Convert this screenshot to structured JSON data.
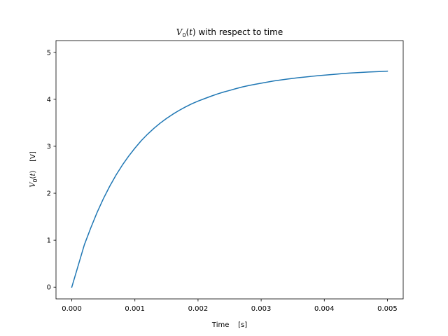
{
  "chart_data": {
    "type": "line",
    "title": {
      "symbol": "V",
      "subscript": "0",
      "arg_open": "(",
      "arg_var": "t",
      "arg_close": ")",
      "suffix": " with respect to time"
    },
    "xlabel": "Time    [s]",
    "ylabel": {
      "symbol": "V",
      "subscript": "0",
      "arg_open": "(",
      "arg_var": "t",
      "arg_close": ")",
      "unit": "    [V]"
    },
    "xlim": [
      -0.00025,
      0.00525
    ],
    "ylim": [
      -0.25,
      5.25
    ],
    "x_ticks": [
      0.0,
      0.001,
      0.002,
      0.003,
      0.004,
      0.005
    ],
    "x_tick_labels": [
      "0.000",
      "0.001",
      "0.002",
      "0.003",
      "0.004",
      "0.005"
    ],
    "y_ticks": [
      0,
      1,
      2,
      3,
      4,
      5
    ],
    "y_tick_labels": [
      "0",
      "1",
      "2",
      "3",
      "4",
      "5"
    ],
    "grid": false,
    "series": [
      {
        "color": "#1f77b4",
        "x": [
          0.0,
          0.0001,
          0.0002,
          0.0003,
          0.0004,
          0.0005,
          0.0006,
          0.0007,
          0.0008,
          0.0009,
          0.001,
          0.0011,
          0.0012,
          0.0013,
          0.0014,
          0.0015,
          0.0016,
          0.0017,
          0.0018,
          0.0019,
          0.002,
          0.0021,
          0.0022,
          0.0023,
          0.0024,
          0.0025,
          0.0026,
          0.0027,
          0.0028,
          0.0029,
          0.003,
          0.0031,
          0.0032,
          0.0033,
          0.0034,
          0.0035,
          0.0036,
          0.0037,
          0.0038,
          0.0039,
          0.004,
          0.0041,
          0.0042,
          0.0043,
          0.0044,
          0.0045,
          0.0046,
          0.0047,
          0.0048,
          0.0049,
          0.005
        ],
        "y": [
          0.0,
          0.453,
          0.906,
          1.259,
          1.588,
          1.882,
          2.146,
          2.384,
          2.597,
          2.788,
          2.96,
          3.119,
          3.256,
          3.38,
          3.492,
          3.592,
          3.682,
          3.763,
          3.837,
          3.904,
          3.962,
          4.013,
          4.063,
          4.111,
          4.153,
          4.189,
          4.227,
          4.263,
          4.293,
          4.318,
          4.342,
          4.367,
          4.391,
          4.41,
          4.428,
          4.445,
          4.461,
          4.475,
          4.489,
          4.502,
          4.514,
          4.525,
          4.537,
          4.549,
          4.558,
          4.566,
          4.574,
          4.581,
          4.587,
          4.593,
          4.599
        ]
      }
    ]
  }
}
